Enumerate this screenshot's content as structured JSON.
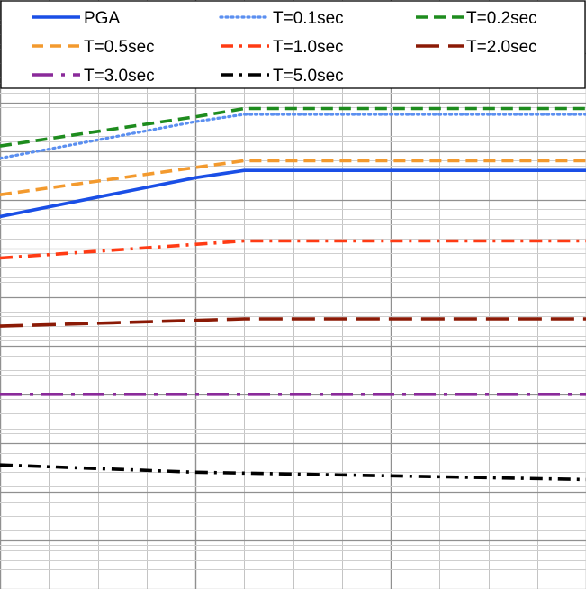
{
  "chart_data": {
    "type": "line",
    "title": "",
    "xlabel": "",
    "ylabel": "",
    "xlim": [
      0,
      12
    ],
    "ylim": [
      0,
      12.1
    ],
    "grid": true,
    "legend_placement": "top",
    "series": [
      {
        "name": "PGA",
        "color": "#1a4fe6",
        "dash": "solid",
        "x": [
          0,
          4,
          5,
          12
        ],
        "y": [
          7.65,
          8.45,
          8.6,
          8.6
        ]
      },
      {
        "name": "T=0.1sec",
        "color": "#5b8ff0",
        "dash": "dot",
        "x": [
          0,
          4,
          5,
          12
        ],
        "y": [
          8.85,
          9.6,
          9.75,
          9.75
        ]
      },
      {
        "name": "T=0.2sec",
        "color": "#1e8c1e",
        "dash": "dash",
        "x": [
          0,
          4,
          5,
          12
        ],
        "y": [
          9.1,
          9.7,
          9.87,
          9.87
        ]
      },
      {
        "name": "T=0.5sec",
        "color": "#f39a2e",
        "dash": "dash",
        "x": [
          0,
          5,
          12
        ],
        "y": [
          8.1,
          8.8,
          8.8
        ]
      },
      {
        "name": "T=1.0sec",
        "color": "#ff3b14",
        "dash": "dashdot",
        "x": [
          0,
          5,
          12
        ],
        "y": [
          6.8,
          7.15,
          7.15
        ]
      },
      {
        "name": "T=2.0sec",
        "color": "#8b1a06",
        "dash": "longdash",
        "x": [
          0,
          5,
          12
        ],
        "y": [
          5.4,
          5.55,
          5.55
        ]
      },
      {
        "name": "T=3.0sec",
        "color": "#8a2a9a",
        "dash": "longdashdot",
        "x": [
          0,
          12
        ],
        "y": [
          4.0,
          4.0
        ]
      },
      {
        "name": "T=5.0sec",
        "color": "#000000",
        "dash": "dashdot",
        "x": [
          0,
          4,
          12
        ],
        "y": [
          2.55,
          2.4,
          2.25
        ]
      }
    ]
  }
}
